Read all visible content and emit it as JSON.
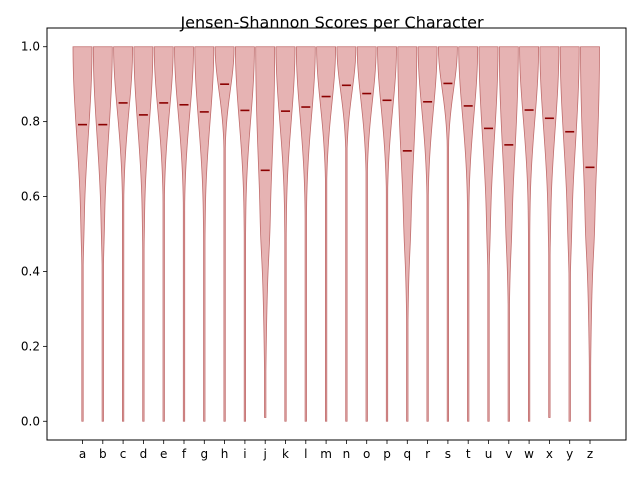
{
  "chart_data": {
    "type": "violin",
    "title": "Jensen-Shannon Scores per Character",
    "xlabel": "",
    "ylabel": "",
    "ylim": [
      -0.05,
      1.05
    ],
    "yticks": [
      "0.0",
      "0.2",
      "0.4",
      "0.6",
      "0.8",
      "1.0"
    ],
    "yticks_values": [
      0.0,
      0.2,
      0.4,
      0.6,
      0.8,
      1.0
    ],
    "grid": false,
    "colors": {
      "body": "#d98a8a",
      "edge": "#c06c6c",
      "mean": "#8b0000"
    },
    "categories": [
      "a",
      "b",
      "c",
      "d",
      "e",
      "f",
      "g",
      "h",
      "i",
      "j",
      "k",
      "l",
      "m",
      "n",
      "o",
      "p",
      "q",
      "r",
      "s",
      "t",
      "u",
      "v",
      "w",
      "x",
      "y",
      "z"
    ],
    "means": [
      0.792,
      0.792,
      0.85,
      0.818,
      0.85,
      0.845,
      0.826,
      0.9,
      0.83,
      0.67,
      0.828,
      0.839,
      0.867,
      0.897,
      0.875,
      0.857,
      0.722,
      0.853,
      0.902,
      0.842,
      0.782,
      0.738,
      0.831,
      0.809,
      0.773,
      0.678
    ],
    "mins": [
      0.0,
      0.0,
      0.0,
      0.0,
      0.0,
      0.0,
      0.0,
      0.0,
      0.0,
      0.01,
      0.0,
      0.0,
      0.0,
      0.0,
      0.0,
      0.0,
      0.0,
      0.0,
      0.0,
      0.0,
      0.0,
      0.0,
      0.0,
      0.01,
      0.0,
      0.0
    ],
    "max": 1.0
  }
}
